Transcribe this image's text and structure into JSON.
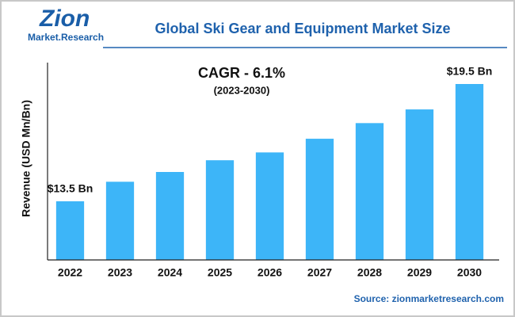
{
  "chart_data": {
    "type": "bar",
    "title": "Global Ski Gear and Equipment Market Size",
    "y_label": "Revenue (USD Mn/Bn)",
    "annotations": [
      "CAGR - 6.1%",
      "(2023-2030)"
    ],
    "source": "Source: zionmarketresearch.com",
    "logo": [
      "Zion",
      "Market.Research"
    ],
    "categories": [
      "2022",
      "2023",
      "2024",
      "2025",
      "2026",
      "2027",
      "2028",
      "2029",
      "2030"
    ],
    "values": [
      13.5,
      14.5,
      15.0,
      15.6,
      16.0,
      16.7,
      17.5,
      18.2,
      19.5
    ],
    "value_labels": [
      "$13.5 Bn",
      null,
      null,
      null,
      null,
      null,
      null,
      null,
      "$19.5 Bn"
    ],
    "color": "#3db5f8",
    "ylim": [
      10.5,
      21
    ]
  }
}
